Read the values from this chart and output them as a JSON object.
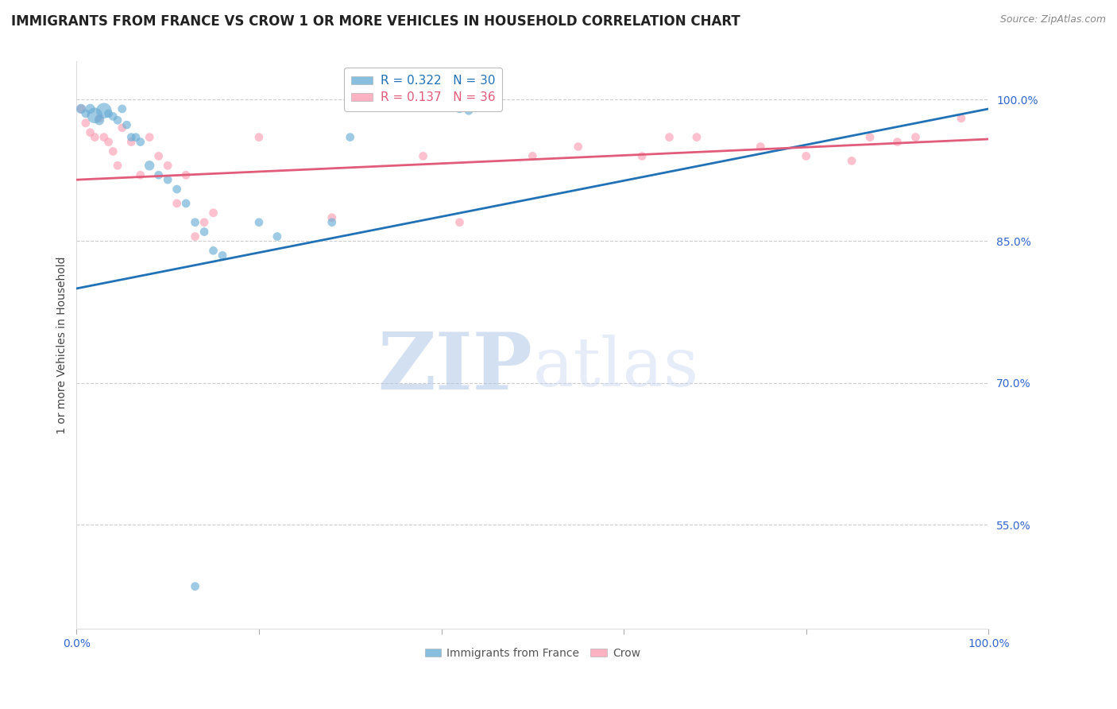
{
  "title": "IMMIGRANTS FROM FRANCE VS CROW 1 OR MORE VEHICLES IN HOUSEHOLD CORRELATION CHART",
  "source_text": "Source: ZipAtlas.com",
  "ylabel": "1 or more Vehicles in Household",
  "xlim": [
    0.0,
    1.0
  ],
  "ylim": [
    0.44,
    1.04
  ],
  "yticks": [
    0.55,
    0.7,
    0.85,
    1.0
  ],
  "ytick_labels": [
    "55.0%",
    "70.0%",
    "85.0%",
    "100.0%"
  ],
  "xticks": [
    0.0,
    0.2,
    0.4,
    0.6,
    0.8,
    1.0
  ],
  "xtick_labels": [
    "0.0%",
    "",
    "",
    "",
    "",
    "100.0%"
  ],
  "blue_R": 0.322,
  "blue_N": 30,
  "pink_R": 0.137,
  "pink_N": 36,
  "blue_color": "#6baed6",
  "pink_color": "#fc9fb5",
  "blue_line_color": "#2171b5",
  "pink_line_color": "#e05c7a",
  "legend_label_blue": "Immigrants from France",
  "legend_label_pink": "Crow",
  "watermark_zip": "ZIP",
  "watermark_atlas": "atlas",
  "blue_x": [
    0.005,
    0.01,
    0.015,
    0.02,
    0.025,
    0.03,
    0.035,
    0.04,
    0.045,
    0.05,
    0.055,
    0.06,
    0.065,
    0.07,
    0.08,
    0.09,
    0.1,
    0.11,
    0.12,
    0.13,
    0.14,
    0.15,
    0.16,
    0.2,
    0.22,
    0.28,
    0.3,
    0.42,
    0.43,
    0.13
  ],
  "blue_y": [
    0.99,
    0.985,
    0.99,
    0.983,
    0.978,
    0.988,
    0.985,
    0.982,
    0.978,
    0.99,
    0.973,
    0.96,
    0.96,
    0.955,
    0.93,
    0.92,
    0.915,
    0.905,
    0.89,
    0.87,
    0.86,
    0.84,
    0.835,
    0.87,
    0.855,
    0.87,
    0.96,
    0.99,
    0.988,
    0.485
  ],
  "blue_sizes": [
    80,
    60,
    80,
    200,
    80,
    200,
    60,
    60,
    60,
    60,
    60,
    60,
    60,
    60,
    80,
    60,
    60,
    60,
    60,
    60,
    60,
    60,
    60,
    60,
    60,
    60,
    60,
    60,
    60,
    60
  ],
  "pink_x": [
    0.005,
    0.01,
    0.015,
    0.02,
    0.025,
    0.03,
    0.035,
    0.04,
    0.045,
    0.05,
    0.06,
    0.07,
    0.08,
    0.09,
    0.1,
    0.11,
    0.12,
    0.13,
    0.14,
    0.15,
    0.2,
    0.28,
    0.38,
    0.42,
    0.5,
    0.55,
    0.62,
    0.65,
    0.68,
    0.75,
    0.8,
    0.85,
    0.87,
    0.9,
    0.92,
    0.97
  ],
  "pink_y": [
    0.99,
    0.975,
    0.965,
    0.96,
    0.98,
    0.96,
    0.955,
    0.945,
    0.93,
    0.97,
    0.955,
    0.92,
    0.96,
    0.94,
    0.93,
    0.89,
    0.92,
    0.855,
    0.87,
    0.88,
    0.96,
    0.875,
    0.94,
    0.87,
    0.94,
    0.95,
    0.94,
    0.96,
    0.96,
    0.95,
    0.94,
    0.935,
    0.96,
    0.955,
    0.96,
    0.98
  ],
  "pink_sizes": [
    60,
    60,
    60,
    60,
    60,
    60,
    60,
    60,
    60,
    60,
    60,
    60,
    60,
    60,
    60,
    60,
    60,
    60,
    60,
    60,
    60,
    60,
    60,
    60,
    60,
    60,
    60,
    60,
    60,
    60,
    60,
    60,
    60,
    60,
    60,
    60
  ],
  "blue_trend_x": [
    0.0,
    1.0
  ],
  "blue_trend_y_start": 0.8,
  "blue_trend_y_end": 0.99,
  "pink_trend_x": [
    0.0,
    1.0
  ],
  "pink_trend_y_start": 0.915,
  "pink_trend_y_end": 0.958,
  "title_fontsize": 12,
  "axis_fontsize": 10,
  "tick_fontsize": 10,
  "tick_color": "#3366cc",
  "grid_color": "#cccccc",
  "background_color": "#ffffff"
}
